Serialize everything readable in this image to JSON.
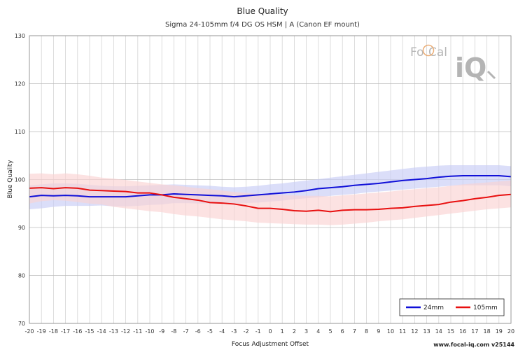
{
  "chart_data": {
    "type": "line",
    "title": "Blue Quality",
    "subtitle": "Sigma 24-105mm f/4 DG OS HSM | A (Canon EF mount)",
    "xlabel": "Focus Adjustment Offset",
    "ylabel": "Blue Quality",
    "xlim": [
      -20,
      20
    ],
    "ylim": [
      70,
      130
    ],
    "yticks": [
      70,
      80,
      90,
      100,
      110,
      120,
      130
    ],
    "x": [
      -20,
      -19,
      -18,
      -17,
      -16,
      -15,
      -14,
      -13,
      -12,
      -11,
      -10,
      -9,
      -8,
      -7,
      -6,
      -5,
      -4,
      -3,
      -2,
      -1,
      0,
      1,
      2,
      3,
      4,
      5,
      6,
      7,
      8,
      9,
      10,
      11,
      12,
      13,
      14,
      15,
      16,
      17,
      18,
      19,
      20
    ],
    "grid": "vertical and horizontal",
    "legend_position": "bottom-right",
    "series": [
      {
        "name": "24mm",
        "color": "#1010d8",
        "band_color": "#c8ccf6",
        "values": [
          96.4,
          96.7,
          96.6,
          96.7,
          96.6,
          96.4,
          96.4,
          96.4,
          96.4,
          96.6,
          96.8,
          96.8,
          97.0,
          96.9,
          96.8,
          96.7,
          96.6,
          96.4,
          96.6,
          96.8,
          97.0,
          97.2,
          97.4,
          97.7,
          98.1,
          98.3,
          98.5,
          98.8,
          99.0,
          99.2,
          99.5,
          99.8,
          100.0,
          100.2,
          100.5,
          100.7,
          100.8,
          100.8,
          100.8,
          100.8,
          100.6
        ],
        "lower": [
          93.8,
          94.0,
          94.3,
          94.5,
          94.5,
          94.5,
          94.6,
          94.4,
          94.4,
          94.5,
          94.7,
          94.8,
          95.1,
          95.1,
          95.0,
          95.0,
          95.0,
          95.0,
          95.1,
          95.2,
          95.4,
          95.6,
          95.9,
          96.1,
          96.3,
          96.6,
          96.8,
          97.0,
          97.3,
          97.5,
          97.7,
          97.9,
          98.1,
          98.3,
          98.5,
          98.7,
          98.8,
          98.8,
          98.8,
          98.8,
          98.6
        ],
        "upper": [
          98.8,
          99.0,
          99.2,
          99.2,
          99.1,
          98.9,
          98.7,
          98.6,
          98.6,
          98.7,
          98.8,
          98.9,
          99.0,
          98.9,
          98.8,
          98.7,
          98.5,
          98.4,
          98.5,
          98.7,
          99.0,
          99.2,
          99.5,
          99.8,
          100.1,
          100.4,
          100.7,
          101.0,
          101.3,
          101.6,
          101.9,
          102.2,
          102.5,
          102.7,
          102.9,
          103.0,
          103.0,
          103.0,
          103.0,
          103.0,
          102.8
        ]
      },
      {
        "name": "105mm",
        "color": "#e81010",
        "band_color": "#fbd2d2",
        "values": [
          98.2,
          98.3,
          98.1,
          98.3,
          98.2,
          97.8,
          97.7,
          97.6,
          97.5,
          97.2,
          97.2,
          96.8,
          96.3,
          96.0,
          95.7,
          95.2,
          95.1,
          94.9,
          94.5,
          94.0,
          94.0,
          93.8,
          93.5,
          93.4,
          93.6,
          93.3,
          93.6,
          93.7,
          93.7,
          93.8,
          94.0,
          94.1,
          94.4,
          94.6,
          94.8,
          95.3,
          95.6,
          96.0,
          96.3,
          96.7,
          96.9
        ],
        "lower": [
          95.0,
          95.5,
          95.7,
          95.6,
          95.3,
          95.0,
          94.8,
          94.3,
          94.0,
          93.7,
          93.4,
          93.2,
          92.8,
          92.5,
          92.3,
          92.0,
          91.7,
          91.5,
          91.3,
          91.0,
          90.9,
          90.8,
          90.7,
          90.6,
          90.6,
          90.5,
          90.6,
          90.8,
          91.0,
          91.3,
          91.5,
          91.7,
          92.0,
          92.3,
          92.6,
          92.9,
          93.2,
          93.5,
          93.8,
          94.0,
          94.2
        ],
        "upper": [
          101.2,
          101.3,
          101.1,
          101.3,
          101.1,
          100.8,
          100.4,
          100.2,
          99.9,
          99.6,
          99.3,
          99.0,
          98.8,
          98.5,
          98.2,
          98.0,
          97.7,
          97.4,
          97.2,
          97.0,
          96.9,
          96.8,
          96.7,
          96.6,
          96.6,
          96.5,
          96.7,
          96.9,
          97.1,
          97.3,
          97.5,
          97.8,
          98.0,
          98.2,
          98.4,
          98.7,
          99.0,
          99.2,
          99.4,
          99.6,
          99.8
        ]
      }
    ]
  },
  "watermark": {
    "text_left": "Fo",
    "text_mid": "Cal",
    "text_big": "iQ",
    "color": "#b8b8b8",
    "accent": "#e8a060"
  },
  "footer": "www.focal-iq.com  v25144"
}
